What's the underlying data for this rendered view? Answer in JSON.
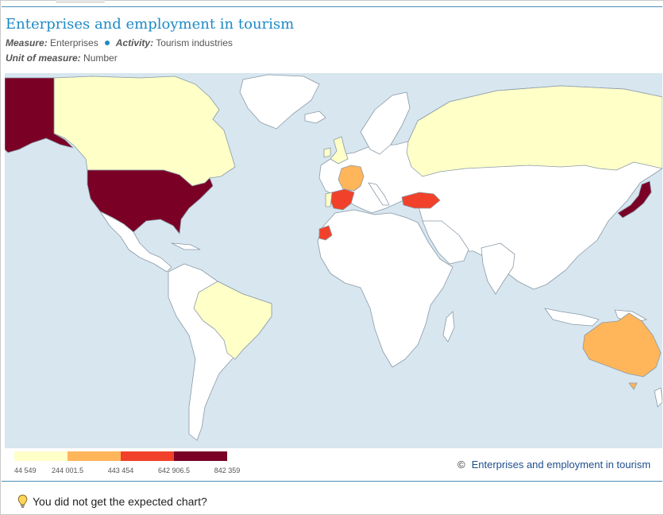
{
  "title": "Enterprises and employment in tourism",
  "meta": {
    "measure_label": "Measure:",
    "measure_value": "Enterprises",
    "activity_label": "Activity:",
    "activity_value": "Tourism industries",
    "unit_label": "Unit of measure:",
    "unit_value": "Number"
  },
  "legend": {
    "colors": [
      "#ffffc8",
      "#ffb55a",
      "#f1412a",
      "#7a0026"
    ],
    "labels": [
      "44 549",
      "244 001.5",
      "443 454",
      "642 906.5",
      "842 359"
    ]
  },
  "map_colors": {
    "ocean": "#d7e6ef",
    "land_no_data": "#ffffff",
    "border": "#8a9aa8"
  },
  "credit": {
    "symbol": "©",
    "text": "Enterprises and employment in tourism"
  },
  "footer": {
    "text": "You did not get the expected chart?"
  }
}
